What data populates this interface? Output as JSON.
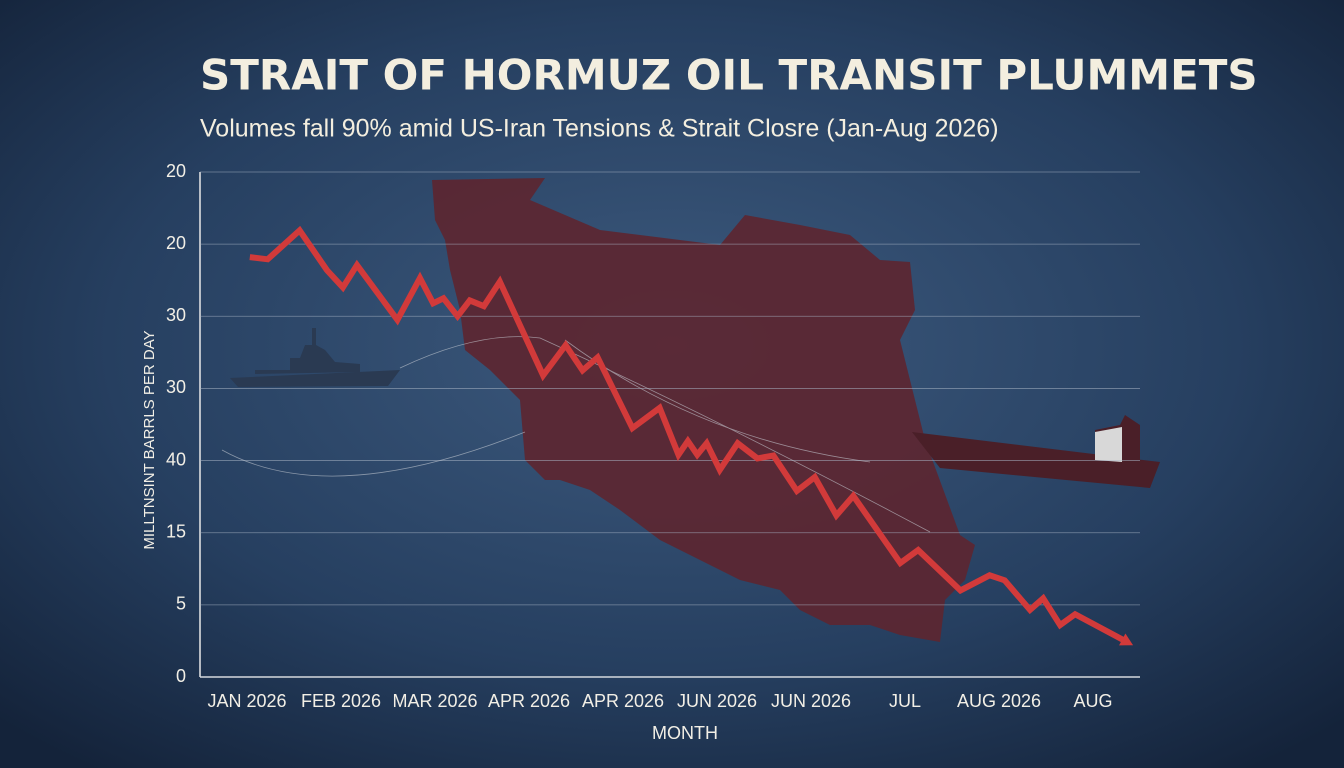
{
  "chart_data": {
    "type": "line",
    "title": "STRAIT OF HORMUZ OIL TRANSIT PLUMMETS",
    "subtitle": "Volumes fall 90% amid US-Iran Tensions & Strait Closre (Jan-Aug 2026)",
    "x_label": "MONTH",
    "y_label": "MILLTNSINT BARRLS PER DAY",
    "color": "#d23a3a",
    "xlim": [
      -0.5,
      9.5
    ],
    "xticks": [
      {
        "value": 0,
        "label": "JAN 2026"
      },
      {
        "value": 1,
        "label": "FEB 2026"
      },
      {
        "value": 2,
        "label": "MAR 2026"
      },
      {
        "value": 3,
        "label": "APR 2026"
      },
      {
        "value": 4,
        "label": "APR 2026"
      },
      {
        "value": 5,
        "label": "JUN 2026"
      },
      {
        "value": 6,
        "label": "JUN 2026"
      },
      {
        "value": 7,
        "label": "JUL"
      },
      {
        "value": 8,
        "label": "AUG 2026"
      },
      {
        "value": 9,
        "label": "AUG"
      }
    ],
    "ylim": [
      0,
      7
    ],
    "yticks": [
      {
        "value": 0,
        "label": "0"
      },
      {
        "value": 1,
        "label": "5"
      },
      {
        "value": 2,
        "label": "15"
      },
      {
        "value": 3,
        "label": "40"
      },
      {
        "value": 4,
        "label": "30"
      },
      {
        "value": 5,
        "label": "30"
      },
      {
        "value": 6,
        "label": "20"
      },
      {
        "value": 7,
        "label": "20"
      }
    ],
    "grid": true,
    "x": [
      0.03,
      0.22,
      0.56,
      0.85,
      1.02,
      1.17,
      1.6,
      1.84,
      1.98,
      2.09,
      2.24,
      2.37,
      2.52,
      2.69,
      3.15,
      3.39,
      3.57,
      3.73,
      4.1,
      4.39,
      4.59,
      4.69,
      4.79,
      4.89,
      5.03,
      5.22,
      5.43,
      5.6,
      5.85,
      6.04,
      6.27,
      6.45,
      6.95,
      7.14,
      7.59,
      7.9,
      8.06,
      8.33,
      8.47,
      8.65,
      8.81,
      9.37
    ],
    "values": [
      5.82,
      5.79,
      6.19,
      5.64,
      5.4,
      5.71,
      4.95,
      5.53,
      5.18,
      5.25,
      5.0,
      5.22,
      5.14,
      5.48,
      4.18,
      4.6,
      4.25,
      4.43,
      3.45,
      3.73,
      3.08,
      3.27,
      3.08,
      3.24,
      2.87,
      3.24,
      3.03,
      3.07,
      2.58,
      2.77,
      2.24,
      2.51,
      1.58,
      1.76,
      1.2,
      1.41,
      1.34,
      0.93,
      1.09,
      0.72,
      0.87,
      0.48
    ]
  }
}
